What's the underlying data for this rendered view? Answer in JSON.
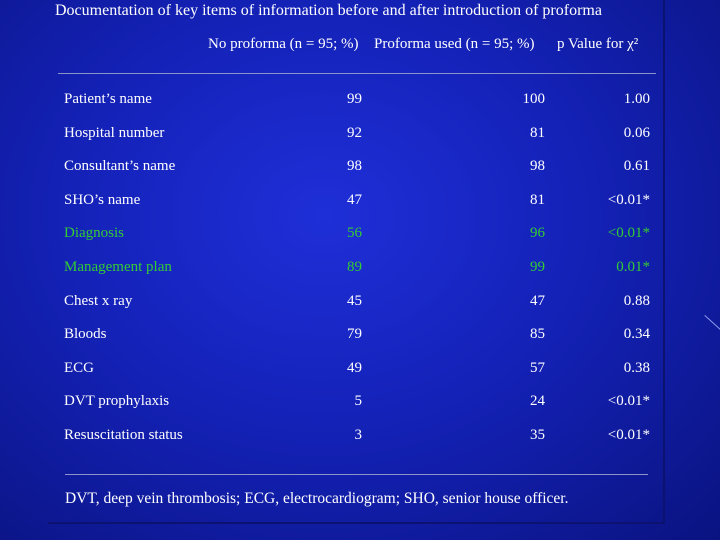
{
  "title": "Documentation of key items of information before and after introduction of proforma",
  "table": {
    "headers": [
      "",
      "No proforma (n = 95; %)",
      "Proforma used (n = 95; %)",
      "p Value for χ²"
    ],
    "rows": [
      {
        "item": "Patient’s name",
        "no_proforma": "99",
        "proforma": "100",
        "p": "1.00",
        "hl": false
      },
      {
        "item": "Hospital number",
        "no_proforma": "92",
        "proforma": "81",
        "p": "0.06",
        "hl": false
      },
      {
        "item": "Consultant’s name",
        "no_proforma": "98",
        "proforma": "98",
        "p": "0.61",
        "hl": false
      },
      {
        "item": "SHO’s name",
        "no_proforma": "47",
        "proforma": "81",
        "p": "<0.01*",
        "hl": false
      },
      {
        "item": "Diagnosis",
        "no_proforma": "56",
        "proforma": "96",
        "p": "<0.01*",
        "hl": true
      },
      {
        "item": "Management plan",
        "no_proforma": "89",
        "proforma": "99",
        "p": "0.01*",
        "hl": true
      },
      {
        "item": "Chest x ray",
        "no_proforma": "45",
        "proforma": "47",
        "p": "0.88",
        "hl": false
      },
      {
        "item": "Bloods",
        "no_proforma": "79",
        "proforma": "85",
        "p": "0.34",
        "hl": false
      },
      {
        "item": "ECG",
        "no_proforma": "49",
        "proforma": "57",
        "p": "0.38",
        "hl": false
      },
      {
        "item": "DVT prophylaxis",
        "no_proforma": "5",
        "proforma": "24",
        "p": "<0.01*",
        "hl": false
      },
      {
        "item": "Resuscitation status",
        "no_proforma": "3",
        "proforma": "35",
        "p": "<0.01*",
        "hl": false
      }
    ]
  },
  "footnote": "DVT, deep vein thrombosis; ECG, electrocardiogram; SHO, senior house officer.",
  "colors": {
    "background": "#1422b8",
    "highlight": "#33cc33",
    "text": "#ffffff"
  }
}
